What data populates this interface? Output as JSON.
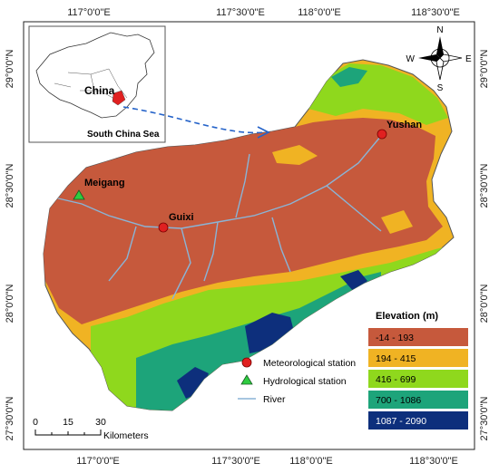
{
  "map": {
    "top_ticks": [
      "117°0'0\"E",
      "117°30'0\"E",
      "118°0'0\"E",
      "118°30'0\"E"
    ],
    "bottom_ticks": [
      "117°0'0\"E",
      "117°30'0\"E",
      "118°0'0\"E",
      "118°30'0\"E"
    ],
    "left_ticks": [
      "29°0'0\"N",
      "28°30'0\"N",
      "28°0'0\"N",
      "27°30'0\"N"
    ],
    "right_ticks": [
      "29°0'0\"N",
      "28°30'0\"N",
      "28°0'0\"N",
      "27°30'0\"N"
    ],
    "places": {
      "yushan": "Yushan",
      "guixi": "Guixi",
      "meigang": "Meigang"
    }
  },
  "inset": {
    "country_label": "China",
    "sea_label": "South China Sea"
  },
  "compass": {
    "n": "N",
    "s": "S",
    "e": "E",
    "w": "W"
  },
  "legend": {
    "title": "Elevation (m)",
    "classes": [
      {
        "label": "-14 - 193",
        "color": "#c6593c"
      },
      {
        "label": "194 - 415",
        "color": "#f0b323"
      },
      {
        "label": "416 - 699",
        "color": "#8fd81d"
      },
      {
        "label": "700 - 1086",
        "color": "#1da47a"
      },
      {
        "label": "1087 - 2090",
        "color": "#0d2f7c"
      }
    ],
    "symbols": {
      "meteorological": "Meteorological station",
      "hydrological": "Hydrological station",
      "river": "River"
    }
  },
  "scale": {
    "labels": [
      "0",
      "15",
      "30"
    ],
    "unit": "Kilometers"
  },
  "colors": {
    "meteorological_marker": "#e02020",
    "hydrological_marker": "#2ecc40",
    "river": "#8ab4d6",
    "arrow": "#2563c9"
  }
}
